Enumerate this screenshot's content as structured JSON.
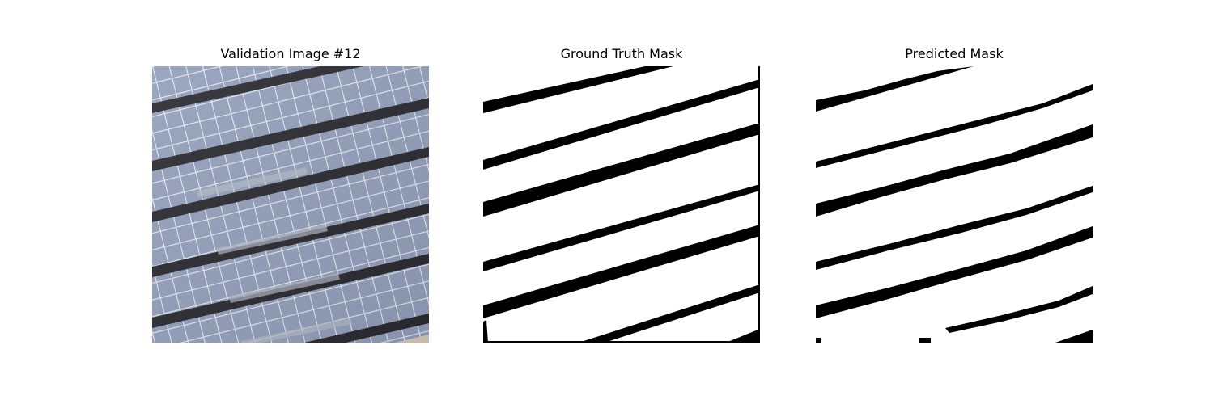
{
  "figure": {
    "panels": [
      {
        "title": "Validation Image #12"
      },
      {
        "title": "Ground Truth Mask"
      },
      {
        "title": "Predicted Mask"
      }
    ]
  },
  "colors": {
    "background": "#ffffff",
    "mask_foreground": "#000000",
    "mask_background": "#ffffff",
    "solar_cell": "#93a0bb",
    "solar_grid_line": "#e8ecf2",
    "panel_gap": "#2a2a30"
  }
}
